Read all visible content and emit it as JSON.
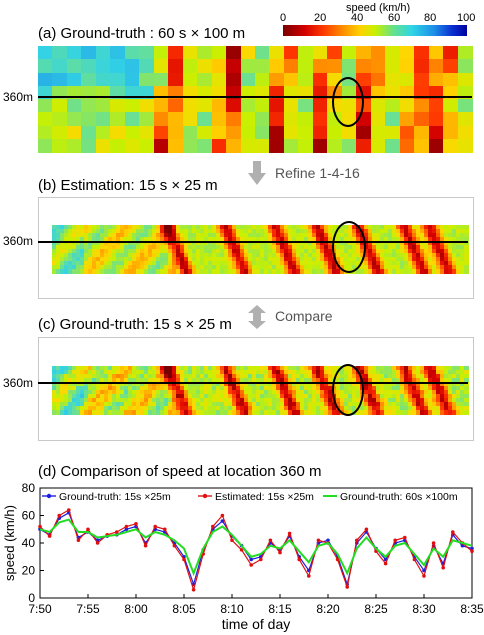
{
  "colorbar": {
    "title": "speed (km/h)",
    "ticks": [
      "0",
      "20",
      "40",
      "60",
      "80",
      "100"
    ]
  },
  "panels": {
    "a": {
      "title": "(a) Ground-truth : 60 s × 100 m",
      "ylabel": "360m"
    },
    "b": {
      "title": "(b) Estimation: 15 s × 25 m",
      "ylabel": "360m"
    },
    "c": {
      "title": "(c) Ground-truth: 15 s × 25 m",
      "ylabel": "360m"
    },
    "d": {
      "title": "(d) Comparison of speed at location 360 m"
    }
  },
  "arrows": {
    "refine": "Refine 1-4-16",
    "compare": "Compare"
  },
  "chart_data": {
    "type": "line",
    "title": "(d) Comparison of speed at location 360 m",
    "xlabel": "time of day",
    "ylabel": "speed (km/h)",
    "xlim": [
      0,
      45
    ],
    "ylim": [
      0,
      80
    ],
    "xtick_labels": [
      "7:50",
      "7:55",
      "8:00",
      "8:05",
      "8:10",
      "8:15",
      "8:20",
      "8:25",
      "8:30",
      "8:35"
    ],
    "ytick_labels": [
      "0",
      "20",
      "40",
      "60",
      "80"
    ],
    "grid": false,
    "legend_position": "top",
    "series": [
      {
        "name": "Ground-truth: 15s ×25m",
        "color": "#1f1fe0",
        "x": [
          0,
          1,
          2,
          3,
          4,
          5,
          6,
          7,
          8,
          9,
          10,
          11,
          12,
          13,
          14,
          15,
          16,
          17,
          18,
          19,
          20,
          21,
          22,
          23,
          24,
          25,
          26,
          27,
          28,
          29,
          30,
          31,
          32,
          33,
          34,
          35,
          36,
          37,
          38,
          39,
          40,
          41,
          42,
          43,
          44,
          45
        ],
        "y": [
          50,
          46,
          58,
          62,
          44,
          48,
          42,
          45,
          46,
          50,
          52,
          40,
          50,
          48,
          40,
          30,
          10,
          35,
          50,
          56,
          45,
          38,
          28,
          30,
          40,
          35,
          45,
          30,
          20,
          40,
          42,
          30,
          10,
          40,
          48,
          36,
          28,
          40,
          42,
          30,
          20,
          38,
          25,
          46,
          38,
          36
        ]
      },
      {
        "name": "Estimated: 15s ×25m",
        "color": "#e01010",
        "x": [
          0,
          1,
          2,
          3,
          4,
          5,
          6,
          7,
          8,
          9,
          10,
          11,
          12,
          13,
          14,
          15,
          16,
          17,
          18,
          19,
          20,
          21,
          22,
          23,
          24,
          25,
          26,
          27,
          28,
          29,
          30,
          31,
          32,
          33,
          34,
          35,
          36,
          37,
          38,
          39,
          40,
          41,
          42,
          43,
          44,
          45
        ],
        "y": [
          52,
          45,
          60,
          64,
          42,
          50,
          40,
          46,
          48,
          52,
          54,
          38,
          52,
          50,
          38,
          28,
          6,
          32,
          52,
          60,
          42,
          35,
          24,
          28,
          42,
          33,
          47,
          28,
          16,
          42,
          40,
          28,
          8,
          42,
          50,
          34,
          25,
          42,
          44,
          28,
          16,
          40,
          22,
          48,
          40,
          34
        ]
      },
      {
        "name": "Ground-truth: 60s ×100m",
        "color": "#22dd22",
        "x": [
          0,
          1,
          2,
          3,
          4,
          5,
          6,
          7,
          8,
          9,
          10,
          11,
          12,
          13,
          14,
          15,
          16,
          17,
          18,
          19,
          20,
          21,
          22,
          23,
          24,
          25,
          26,
          27,
          28,
          29,
          30,
          31,
          32,
          33,
          34,
          35,
          36,
          37,
          38,
          39,
          40,
          41,
          42,
          43,
          44,
          45
        ],
        "y": [
          50,
          48,
          55,
          57,
          48,
          48,
          44,
          45,
          46,
          48,
          50,
          44,
          48,
          46,
          42,
          36,
          18,
          36,
          48,
          52,
          46,
          38,
          30,
          32,
          38,
          36,
          42,
          34,
          26,
          38,
          40,
          32,
          18,
          36,
          44,
          36,
          30,
          38,
          40,
          32,
          24,
          36,
          30,
          42,
          40,
          38
        ]
      }
    ]
  }
}
